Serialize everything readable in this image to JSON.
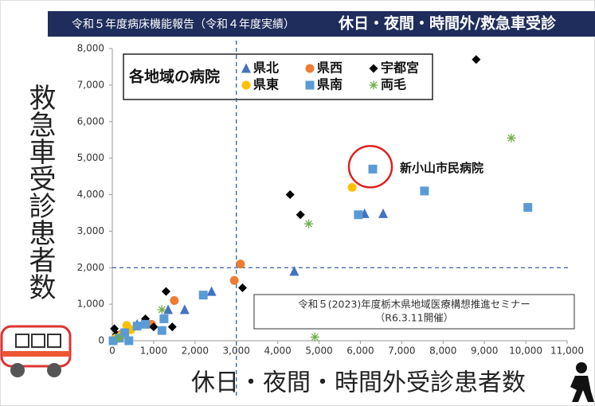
{
  "chart_data": {
    "type": "scatter",
    "title": "令和５年度病床機能報告（令和４年度実績）",
    "subtitle": "休日・夜間・時間外/救急車受診",
    "x_label": "休日・夜間・時間外受診患者数",
    "y_label": "救急車受診患者数",
    "legend_title": "各地域の病院",
    "xlim": [
      0,
      11000
    ],
    "ylim": [
      0,
      8000
    ],
    "xticks": [
      0,
      {
        "value": 1000,
        "label": "1,000"
      },
      {
        "value": 2000,
        "label": "2,000"
      },
      {
        "value": 3000,
        "label": "3,000"
      },
      {
        "value": 4000,
        "label": "4,000"
      },
      {
        "value": 5000,
        "label": "5,000"
      },
      {
        "value": 6000,
        "label": "6,000"
      },
      {
        "value": 7000,
        "label": "7,000"
      },
      {
        "value": 8000,
        "label": "8,000"
      },
      {
        "value": 9000,
        "label": "9,000"
      },
      {
        "value": 10000,
        "label": "10,000"
      },
      {
        "value": 11000,
        "label": "11,000"
      }
    ],
    "yticks": [
      0,
      {
        "value": 1000,
        "label": "1,000"
      },
      {
        "value": 2000,
        "label": "2,000"
      },
      {
        "value": 3000,
        "label": "3,000"
      },
      {
        "value": 4000,
        "label": "4,000"
      },
      {
        "value": 5000,
        "label": "5,000"
      },
      {
        "value": 6000,
        "label": "6,000"
      },
      {
        "value": 7000,
        "label": "7,000"
      },
      {
        "value": 8000,
        "label": "8,000"
      }
    ],
    "reference_lines": {
      "x": 3000,
      "y": 2000
    },
    "series": [
      {
        "name": "県北",
        "color": "#4472c4",
        "marker": "triangle",
        "x": [
          4400,
          6100,
          6550,
          2400,
          1750,
          1350,
          600,
          270
        ],
        "y": [
          1900,
          3480,
          3480,
          1350,
          850,
          850,
          450,
          170
        ]
      },
      {
        "name": "県西",
        "color": "#ed7d31",
        "marker": "circle",
        "x": [
          3100,
          2950,
          1500,
          950,
          200
        ],
        "y": [
          2100,
          1650,
          1100,
          450,
          170
        ]
      },
      {
        "name": "宇都宮",
        "color": "#000000",
        "marker": "diamond",
        "x": [
          8800,
          4300,
          4550,
          3150,
          1300,
          1450,
          800,
          1000,
          50,
          100
        ],
        "y": [
          7700,
          4000,
          3450,
          1450,
          1350,
          380,
          600,
          380,
          330,
          170
        ]
      },
      {
        "name": "県東",
        "color": "#ffc000",
        "marker": "circle",
        "x": [
          5800,
          350,
          450,
          200,
          80
        ],
        "y": [
          4200,
          420,
          300,
          130,
          70
        ]
      },
      {
        "name": "県南",
        "color": "#5b9bd5",
        "marker": "square",
        "x": [
          6300,
          7550,
          10050,
          5950,
          2200,
          1250,
          1200,
          800,
          600,
          300,
          20,
          170,
          400
        ],
        "y": [
          4700,
          4100,
          3650,
          3450,
          1250,
          600,
          280,
          450,
          400,
          220,
          0,
          70,
          0
        ]
      },
      {
        "name": "両毛",
        "color": "#70ad47",
        "marker": "asterisk",
        "x": [
          9650,
          4750,
          4900,
          1200,
          170
        ],
        "y": [
          5550,
          3200,
          100,
          850,
          70
        ]
      }
    ],
    "annotations": [
      "新小山市民病院",
      "令和５(2023)年度栃木県地域医療構想推進セミナー",
      "（R6.3.11開催）"
    ]
  }
}
